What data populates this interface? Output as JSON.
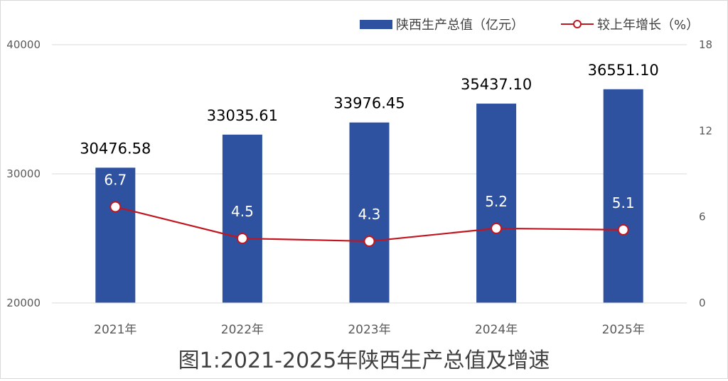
{
  "chart_data": {
    "type": "bar",
    "title": "图1:2021-2025年陕西生产总值及增速",
    "categories": [
      "2021年",
      "2022年",
      "2023年",
      "2024年",
      "2025年"
    ],
    "series": [
      {
        "name": "陕西生产总值（亿元）",
        "type": "bar",
        "axis": "left",
        "color": "#2E52A0",
        "values": [
          30476.58,
          33035.61,
          33976.45,
          35437.1,
          36551.1
        ],
        "labels": [
          "30476.58",
          "33035.61",
          "33976.45",
          "35437.10",
          "36551.10"
        ]
      },
      {
        "name": "较上年增长（%）",
        "type": "line",
        "axis": "right",
        "color": "#C0161F",
        "values": [
          6.7,
          4.5,
          4.3,
          5.2,
          5.1
        ],
        "labels": [
          "6.7",
          "4.5",
          "4.3",
          "5.2",
          "5.1"
        ]
      }
    ],
    "y_left": {
      "ylim": [
        20000,
        40000
      ],
      "ticks": [
        "20000",
        "30000",
        "40000"
      ]
    },
    "y_right": {
      "ylim": [
        0,
        18
      ],
      "ticks": [
        "0",
        "6",
        "12",
        "18"
      ]
    },
    "grid": true,
    "legend": "top-right"
  }
}
